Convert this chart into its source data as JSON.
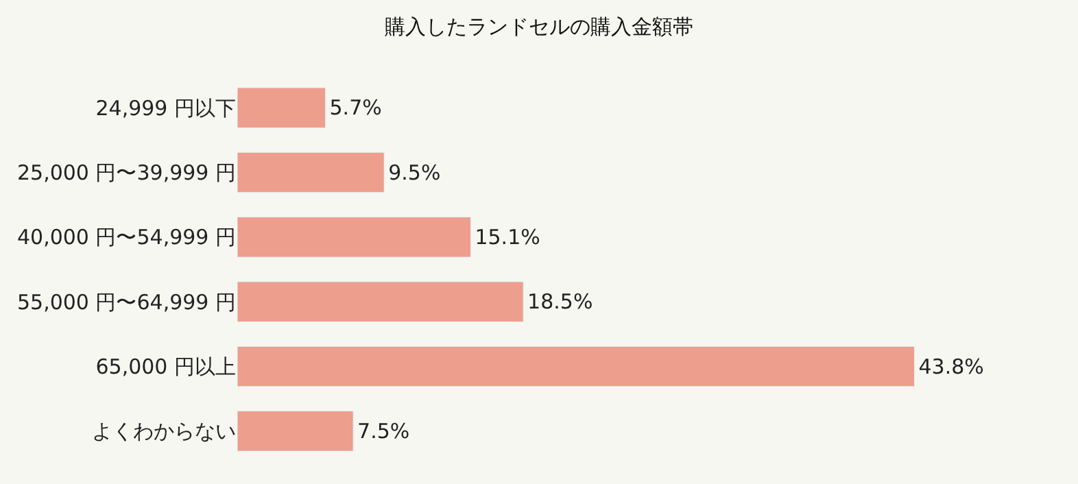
{
  "chart_data": {
    "type": "bar",
    "orientation": "horizontal",
    "title": "購入したランドセルの購入金額帯",
    "categories": [
      "24,999 円以下",
      "25,000 円〜39,999 円",
      "40,000 円〜54,999 円",
      "55,000 円〜64,999 円",
      "65,000 円以上",
      "よくわからない"
    ],
    "values": [
      5.7,
      9.5,
      15.1,
      18.5,
      43.8,
      7.5
    ],
    "value_labels": [
      "5.7%",
      "9.5%",
      "15.1%",
      "18.5%",
      "43.8%",
      "7.5%"
    ],
    "color": "#ee9e8c"
  }
}
